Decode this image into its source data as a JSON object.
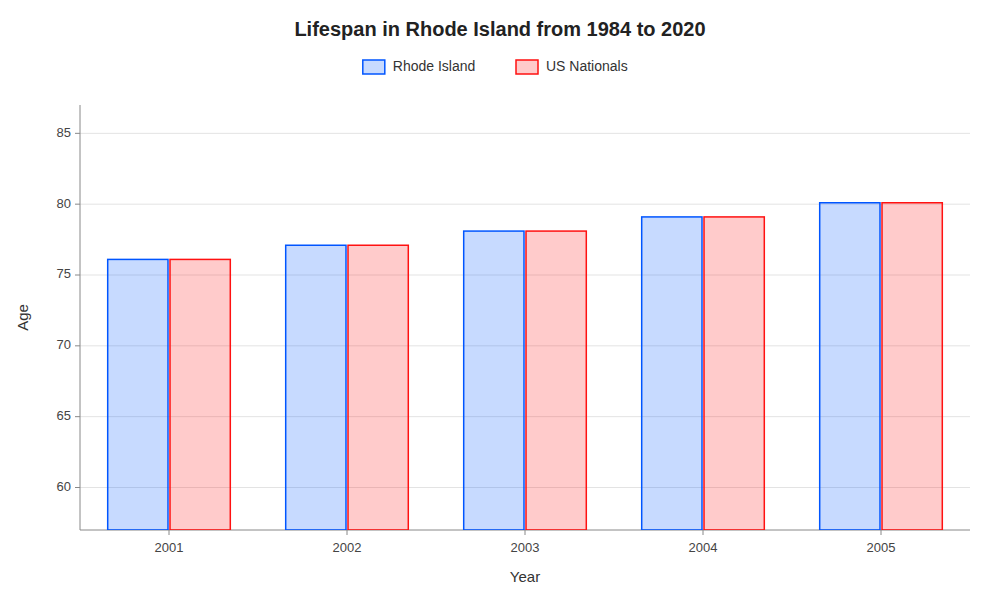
{
  "chart_data": {
    "type": "bar",
    "title": "Lifespan in Rhode Island from 1984 to 2020",
    "x_label": "Year",
    "y_label": "Age",
    "categories": [
      "2001",
      "2002",
      "2003",
      "2004",
      "2005"
    ],
    "series": [
      {
        "name": "Rhode Island",
        "color": "#0055ff",
        "values": [
          76.1,
          77.1,
          78.1,
          79.1,
          80.1
        ]
      },
      {
        "name": "US Nationals",
        "color": "#ff1111",
        "values": [
          76.1,
          77.1,
          78.1,
          79.1,
          80.1
        ]
      }
    ],
    "ylim": [
      57,
      87
    ],
    "yticks": [
      60,
      65,
      70,
      75,
      80,
      85
    ],
    "grid": true,
    "legend": "top"
  }
}
